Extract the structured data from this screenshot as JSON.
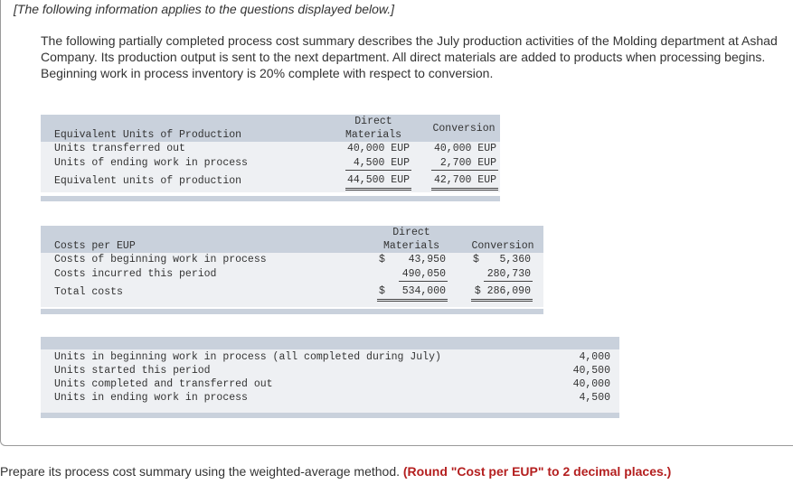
{
  "intro": "[The following information applies to the questions displayed below.]",
  "description": "The following partially completed process cost summary describes the July production activities of the Molding department at Ashad Company. Its production output is sent to the next department. All direct materials are added to products when processing begins. Beginning work in process inventory is 20% complete with respect to conversion.",
  "eup_table": {
    "title": "Equivalent Units of Production",
    "col_dm_line1": "Direct",
    "col_dm_line2": "Materials",
    "col_conv": "Conversion",
    "rows": [
      {
        "label": "Units transferred out",
        "dm": "40,000 EUP",
        "conv": "40,000 EUP"
      },
      {
        "label": "Units of ending work in process",
        "dm": "4,500 EUP",
        "conv": "2,700 EUP"
      },
      {
        "label": "Equivalent units of production",
        "dm": "44,500 EUP",
        "conv": "42,700 EUP"
      }
    ]
  },
  "cost_table": {
    "title": "Costs per EUP",
    "col_dm_line1": "Direct",
    "col_dm_line2": "Materials",
    "col_conv": "Conversion",
    "rows": [
      {
        "label": "Costs of beginning work in process",
        "dm_sym": "$",
        "dm": "43,950",
        "conv_sym": "$",
        "conv": "5,360"
      },
      {
        "label": "Costs incurred this period",
        "dm_sym": "",
        "dm": "490,050",
        "conv_sym": "",
        "conv": "280,730"
      },
      {
        "label": "Total costs",
        "dm_sym": "$",
        "dm": "534,000",
        "conv_sym": "",
        "conv": "$ 286,090"
      }
    ]
  },
  "units_table": {
    "rows": [
      {
        "label": "Units in beginning work in process (all completed during July)",
        "value": "4,000"
      },
      {
        "label": "Units started this period",
        "value": "40,500"
      },
      {
        "label": "Units completed and transferred out",
        "value": "40,000"
      },
      {
        "label": "Units in ending work in process",
        "value": "4,500"
      }
    ]
  },
  "question": {
    "text": "Prepare its process cost summary using the weighted-average method.",
    "hint": "(Round \"Cost per EUP\" to 2 decimal places.)"
  }
}
